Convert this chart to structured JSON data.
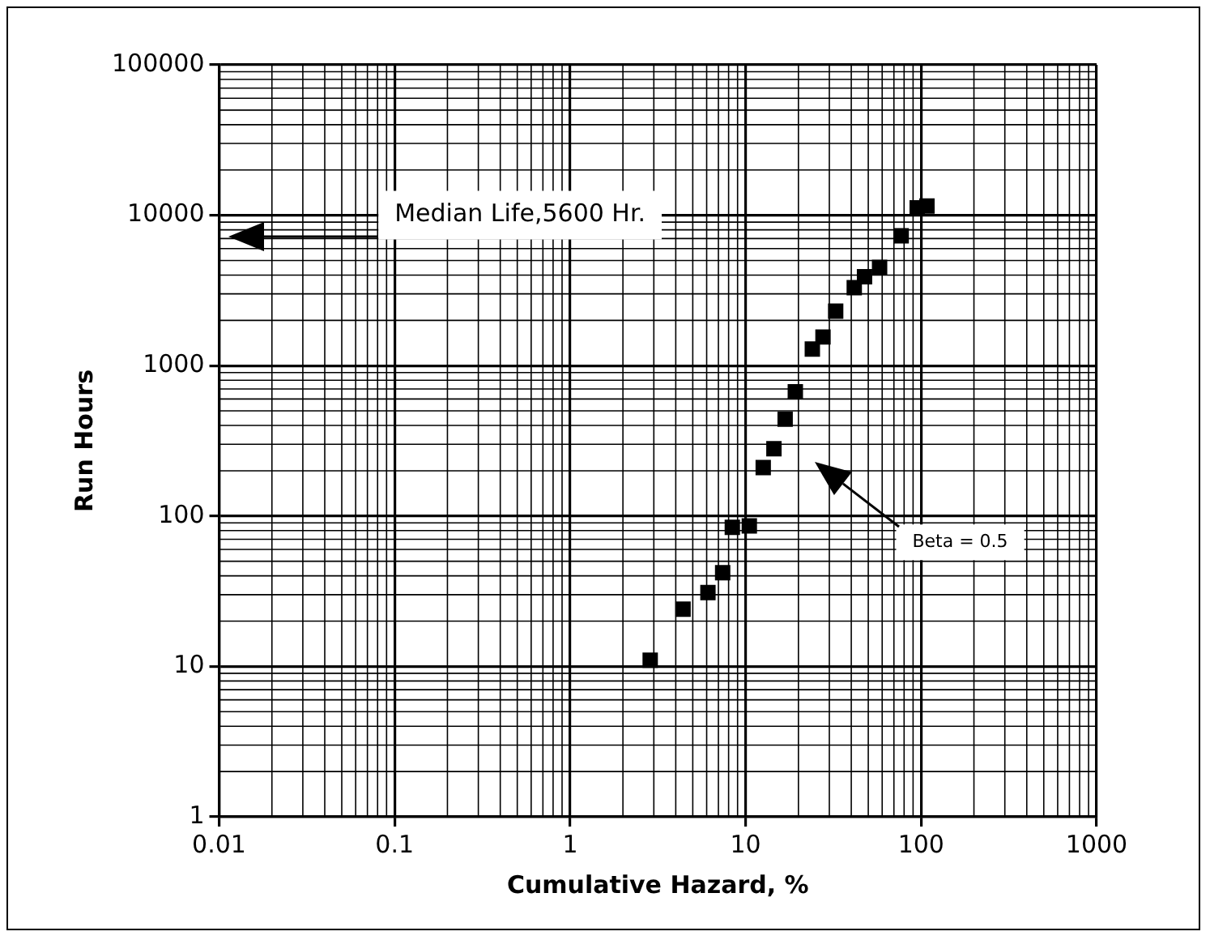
{
  "chart_data": {
    "type": "scatter",
    "xlabel": "Cumulative Hazard, %",
    "ylabel": "Run Hours",
    "x": [
      2.86,
      4.4,
      6.1,
      7.4,
      8.4,
      10.5,
      12.6,
      14.5,
      16.8,
      19.2,
      24,
      27.6,
      32.6,
      41.6,
      47.6,
      58,
      77,
      95,
      108
    ],
    "values": [
      11,
      24,
      31,
      42,
      84,
      86,
      210,
      280,
      440,
      670,
      1290,
      1550,
      2300,
      3300,
      3900,
      4500,
      7300,
      11200,
      11500
    ],
    "color": "#000000",
    "marker": "square",
    "log": "xy",
    "grid": true,
    "legend": false,
    "xlim": [
      0.01,
      1000
    ],
    "xticks": [
      0.01,
      0.1,
      1,
      10,
      100,
      1000
    ],
    "ylim": [
      1,
      100000
    ],
    "yticks": [
      1,
      10,
      100,
      1000,
      10000,
      100000
    ],
    "annotations": [
      "Median Life,5600 Hr.",
      "Beta = 0.5"
    ]
  }
}
